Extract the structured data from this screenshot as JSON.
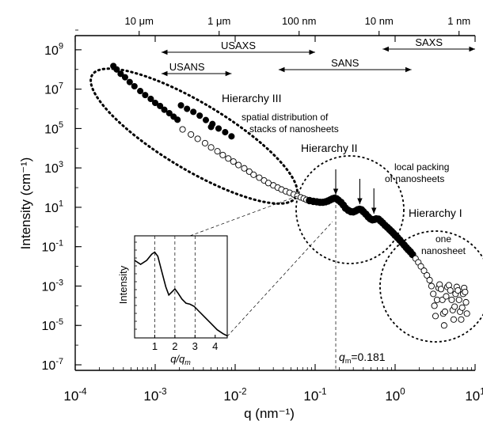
{
  "chart_data": {
    "type": "scatter",
    "xlabel": "q (nm⁻¹)",
    "ylabel": "Intensity (cm⁻¹)",
    "xscale": "log",
    "yscale": "log",
    "xlim": [
      0.0001,
      10
    ],
    "ylim": [
      1e-07,
      10000000000.0
    ],
    "x_ticks": [
      {
        "v": 0.0001,
        "base": "10",
        "exp": "-4"
      },
      {
        "v": 0.001,
        "base": "10",
        "exp": "-3"
      },
      {
        "v": 0.01,
        "base": "10",
        "exp": "-2"
      },
      {
        "v": 0.1,
        "base": "10",
        "exp": "-1"
      },
      {
        "v": 1,
        "base": "10",
        "exp": "0"
      },
      {
        "v": 10,
        "base": "10",
        "exp": "1"
      }
    ],
    "y_ticks": [
      {
        "v": 1e-07,
        "base": "10",
        "exp": "-7"
      },
      {
        "v": 1e-05,
        "base": "10",
        "exp": "-5"
      },
      {
        "v": 0.001,
        "base": "10",
        "exp": "-3"
      },
      {
        "v": 0.1,
        "base": "10",
        "exp": "-1"
      },
      {
        "v": 10,
        "base": "10",
        "exp": "1"
      },
      {
        "v": 1000.0,
        "base": "10",
        "exp": "3"
      },
      {
        "v": 100000.0,
        "base": "10",
        "exp": "5"
      },
      {
        "v": 10000000.0,
        "base": "10",
        "exp": "7"
      },
      {
        "v": 1000000000.0,
        "base": "10",
        "exp": "9"
      }
    ],
    "top_axis": [
      {
        "label": "10 μm",
        "q": 0.00063
      },
      {
        "label": "1 μm",
        "q": 0.0063
      },
      {
        "label": "100 nm",
        "q": 0.063
      },
      {
        "label": "10 nm",
        "q": 0.63
      },
      {
        "label": "1 nm",
        "q": 6.3
      }
    ],
    "ranges": [
      {
        "label": "USANS",
        "q_from": 0.0012,
        "q_to": 0.009
      },
      {
        "label": "USAXS",
        "q_from": 0.0012,
        "q_to": 0.1
      },
      {
        "label": "SANS",
        "q_from": 0.035,
        "q_to": 1.6
      },
      {
        "label": "SAXS",
        "q_from": 0.7,
        "q_to": 10
      }
    ],
    "series": [
      {
        "style": "filled",
        "points": [
          [
            0.0003,
            150000000.0
          ],
          [
            0.00033,
            100000000.0
          ],
          [
            0.00037,
            60000000.0
          ],
          [
            0.00042,
            40000000.0
          ],
          [
            0.00048,
            23000000.0
          ],
          [
            0.00055,
            14000000.0
          ],
          [
            0.00065,
            8000000.0
          ],
          [
            0.00075,
            5000000.0
          ],
          [
            0.00088,
            3200000.0
          ],
          [
            0.001,
            2000000.0
          ],
          [
            0.00115,
            1400000.0
          ],
          [
            0.0013,
            900000.0
          ],
          [
            0.0015,
            600000.0
          ],
          [
            0.0017,
            400000.0
          ],
          [
            0.0019,
            280000.0
          ],
          [
            0.0021,
            1500000.0
          ],
          [
            0.0025,
            1000000.0
          ],
          [
            0.003,
            700000.0
          ],
          [
            0.0036,
            450000.0
          ],
          [
            0.0043,
            270000.0
          ],
          [
            0.0052,
            170000.0
          ],
          [
            0.0062,
            100000.0
          ],
          [
            0.0075,
            65000.0
          ],
          [
            0.009,
            40000.0
          ],
          [
            0.005,
            120000.0
          ]
        ]
      },
      {
        "style": "open",
        "points": [
          [
            0.0022,
            90000.0
          ],
          [
            0.0028,
            50000.0
          ],
          [
            0.0034,
            30000.0
          ],
          [
            0.0042,
            18000.0
          ],
          [
            0.005,
            11000.0
          ],
          [
            0.006,
            7000.0
          ],
          [
            0.007,
            4500.0
          ],
          [
            0.0082,
            3000.0
          ],
          [
            0.0095,
            2100.0
          ],
          [
            0.011,
            1400.0
          ],
          [
            0.013,
            950.0
          ],
          [
            0.015,
            650.0
          ],
          [
            0.017,
            450.0
          ],
          [
            0.02,
            320.0
          ],
          [
            0.023,
            230.0
          ],
          [
            0.026,
            170.0
          ],
          [
            0.03,
            130.0
          ],
          [
            0.034,
            100.0
          ],
          [
            0.038,
            80
          ],
          [
            0.043,
            65
          ],
          [
            0.048,
            55
          ],
          [
            0.054,
            45
          ],
          [
            0.06,
            38
          ],
          [
            0.066,
            32
          ],
          [
            0.072,
            28
          ],
          [
            0.078,
            24
          ]
        ]
      },
      {
        "style": "filled-dense",
        "points": [
          [
            0.085,
            22
          ],
          [
            0.095,
            20
          ],
          [
            0.105,
            19
          ],
          [
            0.115,
            18
          ],
          [
            0.125,
            18
          ],
          [
            0.135,
            19
          ],
          [
            0.145,
            21
          ],
          [
            0.155,
            24
          ],
          [
            0.165,
            27
          ],
          [
            0.175,
            29
          ],
          [
            0.185,
            27
          ],
          [
            0.195,
            23
          ],
          [
            0.21,
            18
          ],
          [
            0.225,
            13
          ],
          [
            0.24,
            9
          ],
          [
            0.26,
            7
          ],
          [
            0.28,
            6
          ],
          [
            0.3,
            5.8
          ],
          [
            0.32,
            6.5
          ],
          [
            0.34,
            7.5
          ],
          [
            0.36,
            8
          ],
          [
            0.38,
            7.5
          ],
          [
            0.4,
            6
          ],
          [
            0.43,
            4.5
          ],
          [
            0.46,
            3.3
          ],
          [
            0.49,
            2.6
          ],
          [
            0.52,
            2.3
          ],
          [
            0.55,
            2.4
          ],
          [
            0.58,
            2.6
          ],
          [
            0.62,
            2.5
          ],
          [
            0.66,
            2.0
          ],
          [
            0.7,
            1.6
          ],
          [
            0.75,
            1.2
          ],
          [
            0.8,
            0.95
          ],
          [
            0.85,
            0.75
          ],
          [
            0.9,
            0.6
          ],
          [
            0.95,
            0.48
          ],
          [
            1.0,
            0.38
          ],
          [
            1.07,
            0.29
          ],
          [
            1.14,
            0.22
          ],
          [
            1.22,
            0.16
          ],
          [
            1.3,
            0.12
          ],
          [
            1.38,
            0.09
          ],
          [
            1.46,
            0.07
          ],
          [
            1.55,
            0.055
          ],
          [
            1.65,
            0.04
          ]
        ]
      },
      {
        "style": "open-tail",
        "points": [
          [
            1.8,
            0.025
          ],
          [
            1.95,
            0.016
          ],
          [
            2.1,
            0.01
          ],
          [
            2.3,
            0.006
          ],
          [
            2.5,
            0.0035
          ],
          [
            2.7,
            0.002
          ],
          [
            2.85,
            0.001
          ],
          [
            3.0,
            0.0004
          ],
          [
            3.1,
            0.0001
          ],
          [
            3.2,
            3e-05
          ],
          [
            3.35,
            0.0002
          ],
          [
            3.5,
            0.0008
          ],
          [
            3.6,
            0.0012
          ],
          [
            3.75,
            0.0007
          ],
          [
            3.9,
            0.0002
          ],
          [
            4.0,
            4e-05
          ],
          [
            4.1,
            1e-05
          ],
          [
            4.2,
            5e-05
          ],
          [
            4.35,
            0.0003
          ],
          [
            4.5,
            0.0009
          ],
          [
            4.7,
            0.0011
          ],
          [
            4.9,
            0.0006
          ],
          [
            5.1,
            0.0002
          ],
          [
            5.25,
            6e-05
          ],
          [
            5.4,
            2e-05
          ],
          [
            5.55,
            9e-05
          ],
          [
            5.7,
            0.0004
          ],
          [
            5.9,
            0.0009
          ],
          [
            6.1,
            0.0006
          ],
          [
            6.3,
            0.0002
          ],
          [
            6.5,
            5e-05
          ],
          [
            6.7,
            2e-05
          ],
          [
            6.9,
            8e-05
          ],
          [
            7.1,
            0.0004
          ],
          [
            7.3,
            0.0008
          ],
          [
            7.5,
            0.0005
          ],
          [
            7.7,
            0.00015
          ],
          [
            7.9,
            4e-05
          ]
        ]
      }
    ],
    "annotations": {
      "hierarchy3": "Hierarchy III",
      "hierarchy3_desc1": "spatial distribution of",
      "hierarchy3_desc2": "stacks of nanosheets",
      "hierarchy2": "Hierarchy II",
      "hierarchy2_desc1": "local packing",
      "hierarchy2_desc2": "of nanosheets",
      "hierarchy1": "Hierarchy I",
      "hierarchy1_desc1": "one",
      "hierarchy1_desc2": "nanosheet",
      "qm_label": "q",
      "qm_sub": "m",
      "qm_value": "=0.181",
      "qm": 0.181,
      "peak_arrows_q": [
        0.181,
        0.362,
        0.543
      ]
    },
    "inset": {
      "ylabel": "Intensity",
      "xlabel": "q/q",
      "xlabel_sub": "m",
      "x_ticks": [
        "1",
        "2",
        "3",
        "4"
      ],
      "xlim": [
        0,
        4.6
      ],
      "dashed_at": [
        1,
        2,
        3
      ],
      "curve": [
        [
          0,
          0.76
        ],
        [
          0.3,
          0.72
        ],
        [
          0.6,
          0.76
        ],
        [
          0.85,
          0.82
        ],
        [
          1.0,
          0.84
        ],
        [
          1.15,
          0.8
        ],
        [
          1.35,
          0.65
        ],
        [
          1.55,
          0.5
        ],
        [
          1.7,
          0.42
        ],
        [
          1.85,
          0.45
        ],
        [
          2.0,
          0.48
        ],
        [
          2.15,
          0.44
        ],
        [
          2.35,
          0.38
        ],
        [
          2.55,
          0.34
        ],
        [
          2.75,
          0.33
        ],
        [
          2.95,
          0.31
        ],
        [
          3.2,
          0.26
        ],
        [
          3.5,
          0.2
        ],
        [
          3.8,
          0.14
        ],
        [
          4.1,
          0.08
        ],
        [
          4.4,
          0.04
        ],
        [
          4.6,
          0.02
        ]
      ]
    }
  }
}
